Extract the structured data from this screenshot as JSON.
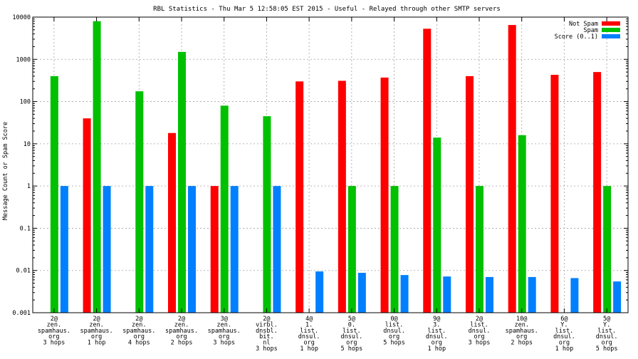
{
  "chart_data": {
    "type": "bar",
    "title": "RBL Statistics - Thu Mar  5 12:58:05 EST 2015 - Useful - Relayed through other SMTP servers",
    "ylabel": "Message Count or Spam Score",
    "xlabel": "",
    "yscale": "log",
    "ylim": [
      0.001,
      10000
    ],
    "yticks": [
      "0.001",
      "0.01",
      "0.1",
      "1",
      "10",
      "100",
      "1000",
      "10000"
    ],
    "grid": true,
    "legend_position": "top-right",
    "categories": [
      [
        "2@",
        "zen.",
        "spamhaus.",
        "org",
        "3 hops"
      ],
      [
        "2@",
        "zen.",
        "spamhaus.",
        "org",
        "1 hop"
      ],
      [
        "2@",
        "zen.",
        "spamhaus.",
        "org",
        "4 hops"
      ],
      [
        "2@",
        "zen.",
        "spamhaus.",
        "org",
        "2 hops"
      ],
      [
        "3@",
        "zen.",
        "spamhaus.",
        "org",
        "3 hops"
      ],
      [
        "2@",
        "virbl.",
        "dnsbl.",
        "bit.",
        "nl",
        "3 hops"
      ],
      [
        "4@",
        "1.",
        "list.",
        "dnsul.",
        "org",
        "1 hop"
      ],
      [
        "5@",
        "0.",
        "list.",
        "dnsul.",
        "org",
        "5 hops"
      ],
      [
        "0@",
        "list.",
        "dnsul.",
        "org",
        "5 hops"
      ],
      [
        "9@",
        "3.",
        "list.",
        "dnsul.",
        "org",
        "1 hop"
      ],
      [
        "2@",
        "list.",
        "dnsul.",
        "org",
        "3 hops"
      ],
      [
        "10@",
        "zen.",
        "spamhaus.",
        "org",
        "2 hops"
      ],
      [
        "6@",
        "Y.",
        "list.",
        "dnsul.",
        "org",
        "1 hop"
      ],
      [
        "5@",
        "Y.",
        "list.",
        "dnsul.",
        "org",
        "5 hops"
      ]
    ],
    "series": [
      {
        "name": "Not Spam",
        "color": "#ff0000",
        "values": [
          null,
          40,
          null,
          18,
          1,
          null,
          300,
          310,
          370,
          5300,
          400,
          6500,
          430,
          500
        ]
      },
      {
        "name": "Spam",
        "color": "#00c000",
        "values": [
          400,
          8000,
          175,
          1500,
          80,
          45,
          null,
          1,
          1,
          14,
          1,
          16,
          null,
          1
        ]
      },
      {
        "name": "Score (0..1)",
        "color": "#0080ff",
        "values": [
          1,
          1,
          1,
          1,
          1,
          1,
          0.0095,
          0.0088,
          0.0078,
          0.0072,
          0.007,
          0.007,
          0.0066,
          0.0055
        ]
      }
    ]
  }
}
